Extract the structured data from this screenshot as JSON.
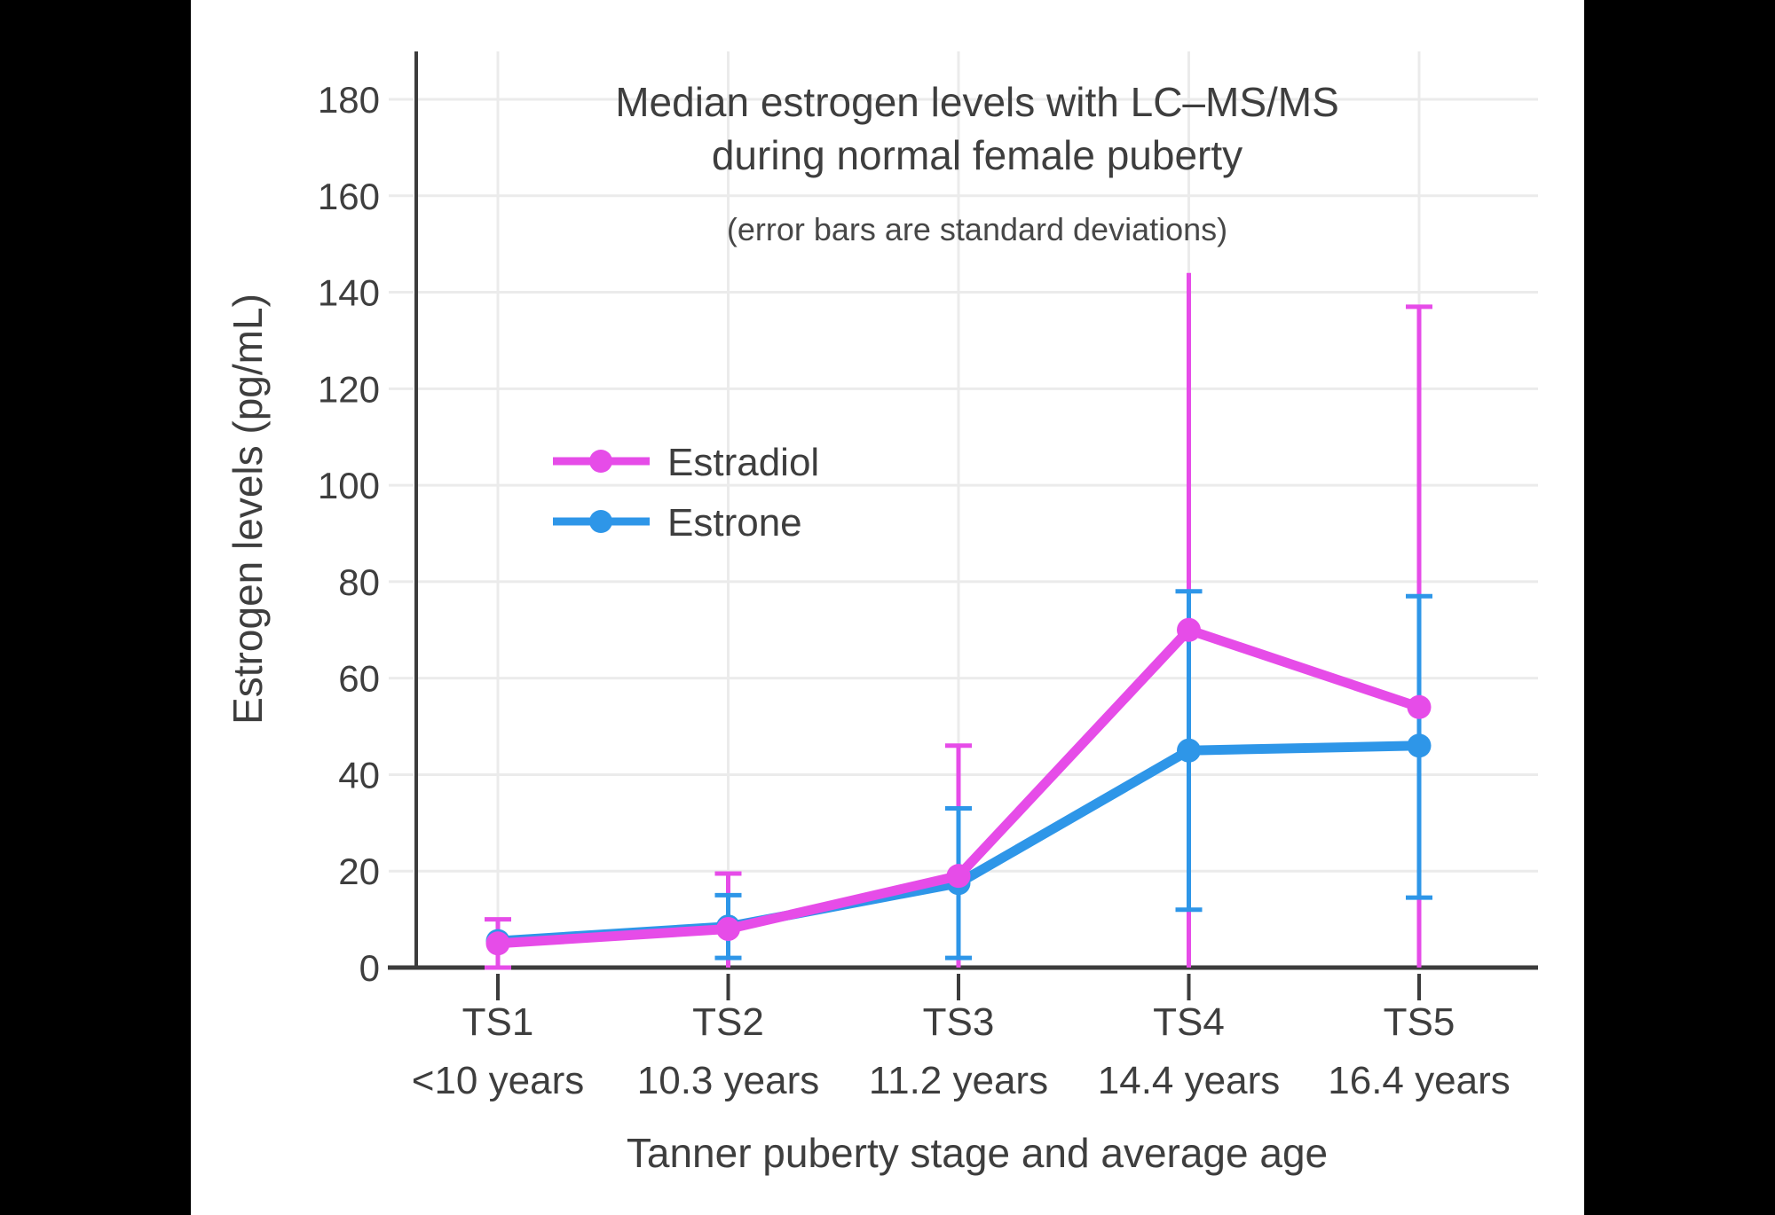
{
  "chart_data": {
    "type": "line",
    "title_line1": "Median estrogen levels with LC–MS/MS",
    "title_line2": "during normal female puberty",
    "subtitle": "(error bars are standard deviations)",
    "xlabel": "Tanner puberty stage and average age",
    "ylabel": "Estrogen levels (pg/mL)",
    "categories": [
      "TS1",
      "TS2",
      "TS3",
      "TS4",
      "TS5"
    ],
    "category_sublabels": [
      "<10 years",
      "10.3 years",
      "11.2 years",
      "14.4 years",
      "16.4 years"
    ],
    "y_ticks": [
      0,
      20,
      40,
      60,
      80,
      100,
      120,
      140,
      160,
      180
    ],
    "ylim": [
      0,
      190
    ],
    "grid": true,
    "legend_position": "inside-upper-left",
    "error_bar_meaning": "standard deviations, clipped at 0",
    "series": [
      {
        "name": "Estrone",
        "color": "#2E96E8",
        "values": [
          5.5,
          8.5,
          17.5,
          45,
          46
        ],
        "error_upper": [
          null,
          15,
          33,
          78,
          77
        ],
        "error_lower": [
          null,
          2,
          2,
          12,
          14.5
        ],
        "caps_upper": [
          false,
          true,
          true,
          true,
          true
        ],
        "caps_lower": [
          false,
          true,
          true,
          true,
          true
        ]
      },
      {
        "name": "Estradiol",
        "color": "#E64CE8",
        "values": [
          5,
          8,
          19,
          70,
          54
        ],
        "error_upper": [
          10,
          19.5,
          46,
          144,
          137
        ],
        "error_lower": [
          0,
          0,
          0,
          0,
          0
        ],
        "caps_upper": [
          true,
          true,
          true,
          false,
          true
        ],
        "caps_lower": [
          true,
          false,
          false,
          false,
          false
        ]
      }
    ]
  },
  "legend": {
    "items": [
      {
        "label": "Estradiol",
        "color": "#E64CE8"
      },
      {
        "label": "Estrone",
        "color": "#2E96E8"
      }
    ]
  },
  "colors": {
    "background": "#FFFFFF",
    "letterbox": "#000000",
    "axis": "#3C3C3C",
    "grid": "#EBEBEB",
    "text": "#3E3E3E",
    "estradiol": "#E64CE8",
    "estrone": "#2E96E8"
  }
}
